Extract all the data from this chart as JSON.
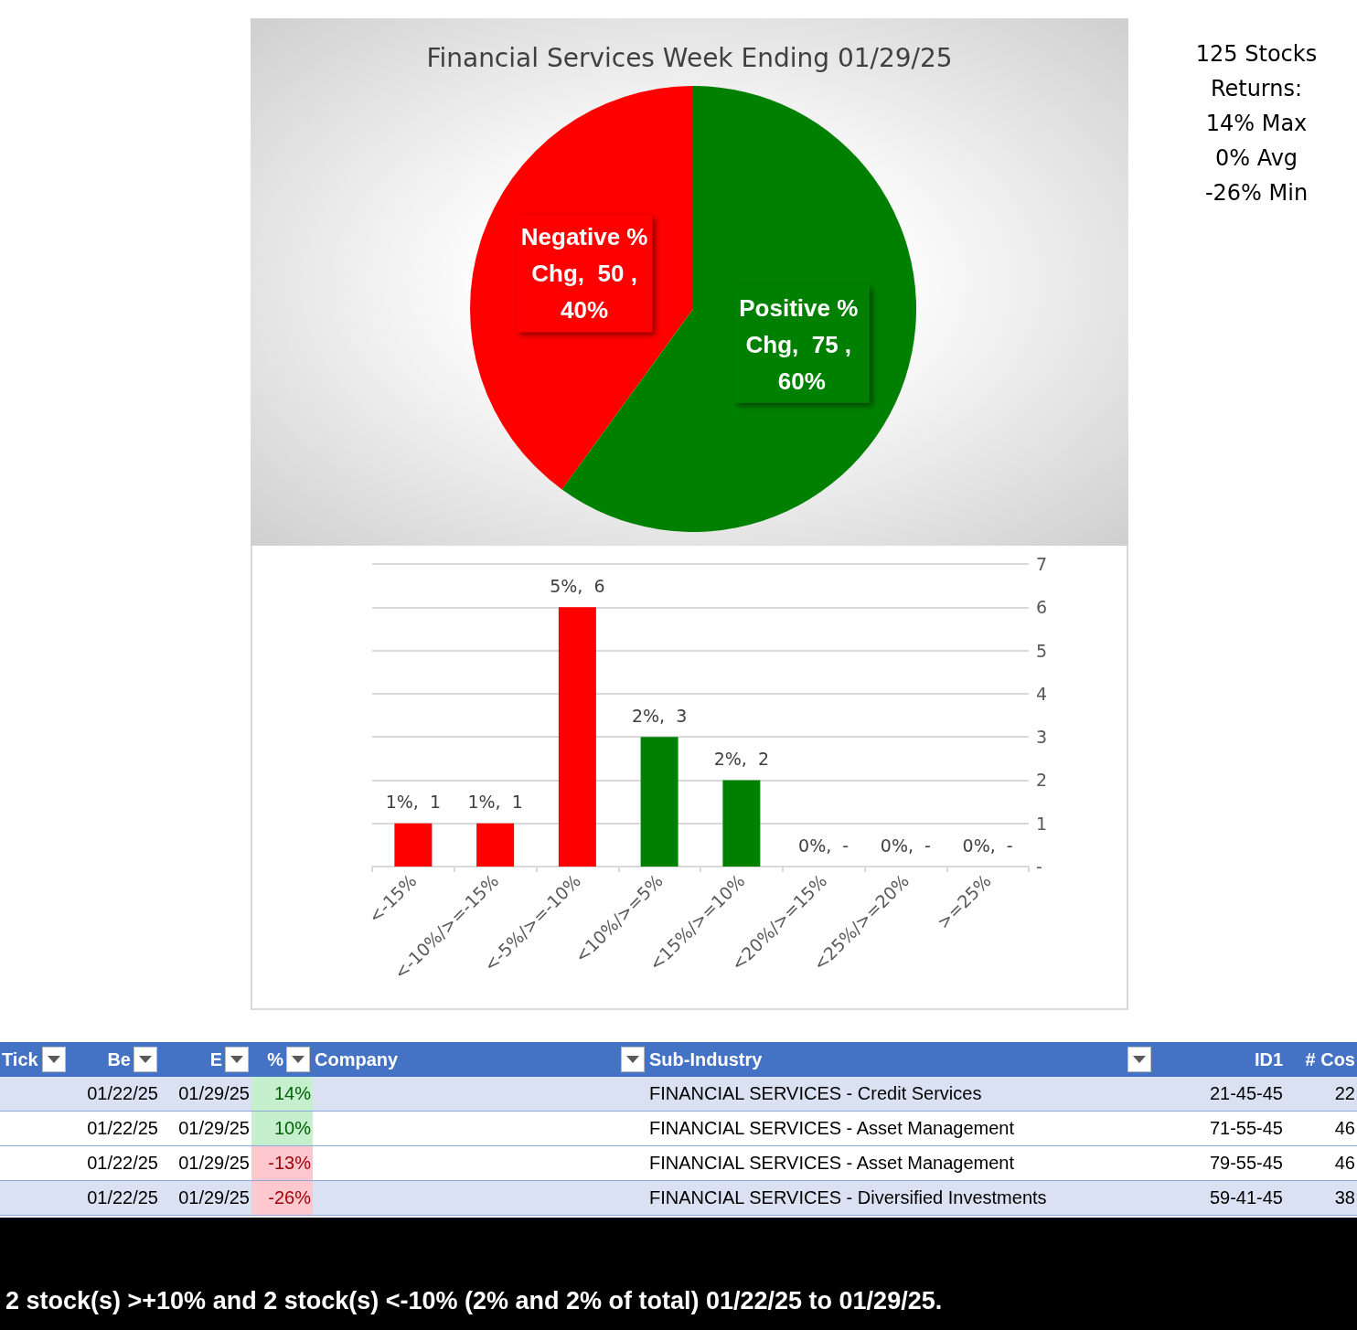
{
  "chart_data": [
    {
      "type": "pie",
      "title": "Financial Services Week Ending 01/29/25",
      "categories": [
        "Negative % Chg",
        "Positive % Chg"
      ],
      "values": [
        50,
        75
      ],
      "colors": [
        "#ff0000",
        "#008000"
      ],
      "value_labels": [
        "50 , 40%",
        "75 , 60%"
      ]
    },
    {
      "type": "bar",
      "categories": [
        "<-15%",
        "<-10%/>=-15%",
        "<-5%/>=-10%",
        "<10%/>=5%",
        "<15%/>=10%",
        "<20%/>=15%",
        "<25%/>=20%",
        ">=25%"
      ],
      "values": [
        1,
        1,
        6,
        3,
        2,
        0,
        0,
        0
      ],
      "colors": [
        "#ff0000",
        "#ff0000",
        "#ff0000",
        "#008000",
        "#008000",
        "#008000",
        "#008000",
        "#008000"
      ],
      "value_labels": [
        "1%,  1",
        "1%,  1",
        "5%,  6",
        "2%,  3",
        "2%,  2",
        "0%,  -",
        "0%,  -",
        "0%,  -"
      ],
      "ylim": [
        0,
        7
      ],
      "yticks": [
        {
          "value": 0,
          "label": "-"
        },
        1,
        2,
        3,
        4,
        5,
        6,
        7
      ],
      "grid": "y"
    },
    {
      "type": "other",
      "annotations": [
        "125 Stocks",
        "Returns:",
        "14% Max",
        "0% Avg",
        "-26% Min"
      ]
    },
    {
      "type": "other",
      "categories": [
        "Tick",
        "Be",
        "E",
        "%",
        "Company",
        "Sub-Industry",
        "ID1",
        "# Cos"
      ],
      "cell_labels": [
        [
          null,
          "01/22/25",
          "01/29/25",
          "14%",
          null,
          "FINANCIAL SERVICES - Credit Services",
          "21-45-45",
          "22"
        ],
        [
          null,
          "01/22/25",
          "01/29/25",
          "10%",
          null,
          "FINANCIAL SERVICES - Asset Management",
          "71-55-45",
          "46"
        ],
        [
          null,
          "01/22/25",
          "01/29/25",
          "-13%",
          null,
          "FINANCIAL SERVICES - Asset Management",
          "79-55-45",
          "46"
        ],
        [
          null,
          "01/22/25",
          "01/29/25",
          "-26%",
          null,
          "FINANCIAL SERVICES - Diversified Investments",
          "59-41-45",
          "38"
        ]
      ],
      "annotations": [
        "2 stock(s) >+10% and 2 stock(s) <-10% (2% and 2% of total) 01/22/25 to 01/29/25."
      ]
    }
  ]
}
